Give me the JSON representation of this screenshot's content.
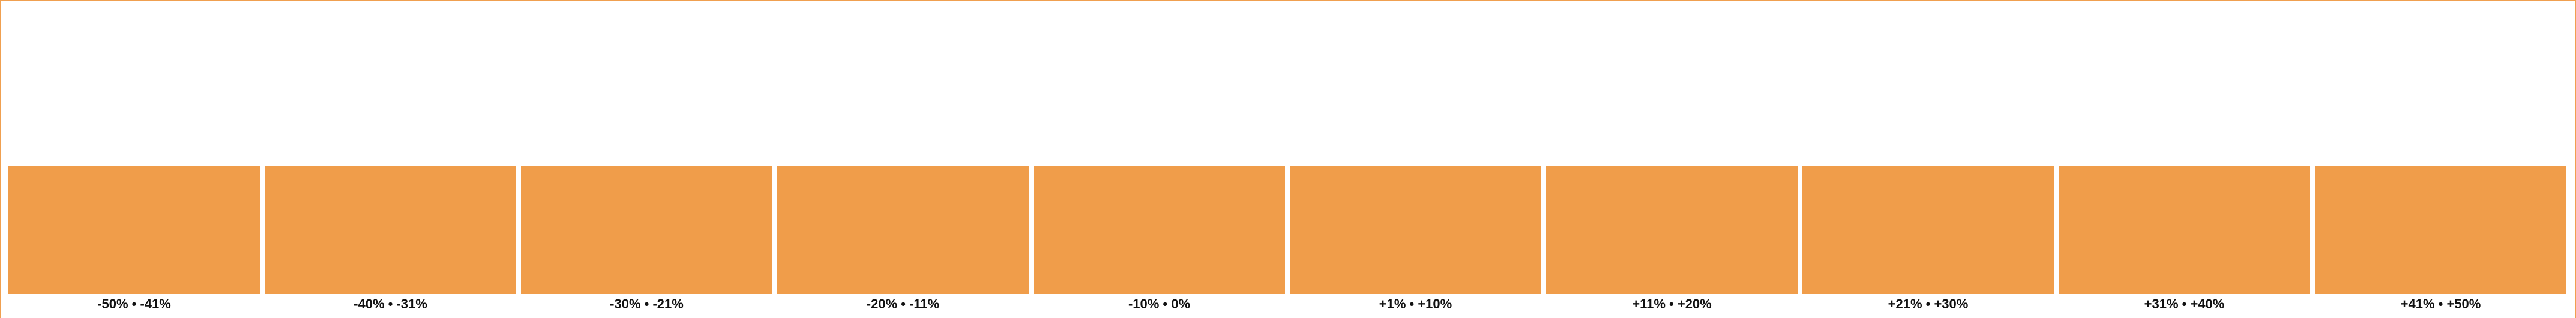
{
  "chart_data": {
    "type": "bar",
    "categories": [
      "-50% • -41%",
      "-40% • -31%",
      "-30% • -21%",
      "-20% • -11%",
      "-10% • 0%",
      "+1% • +10%",
      "+11% • +20%",
      "+21% • +30%",
      "+31% • +40%",
      "+41% • +50%"
    ],
    "values": [
      1,
      1,
      1,
      1,
      1,
      1,
      1,
      1,
      1,
      1
    ],
    "ylim": [
      0,
      2.2
    ],
    "grid": false,
    "colors": {
      "bar": "#F09D4A",
      "frame": "#F0A050",
      "label": "#111111"
    }
  }
}
